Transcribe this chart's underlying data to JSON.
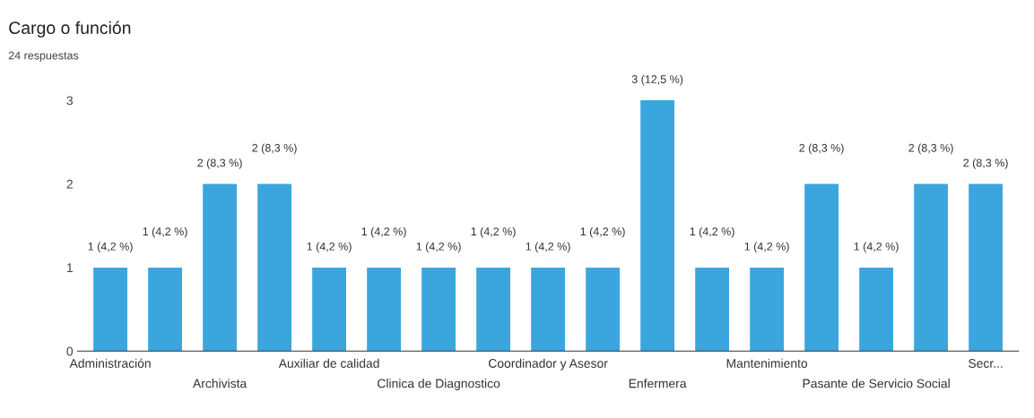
{
  "chart_data": {
    "type": "bar",
    "title": "Cargo o función",
    "subtitle": "24 respuestas",
    "categories": [
      "Administración",
      null,
      "Archivista",
      null,
      "Auxiliar de calidad",
      null,
      "Clinica de Diagnostico",
      null,
      "Coordinador y Asesor",
      null,
      "Enfermera",
      null,
      "Mantenimiento",
      null,
      "Pasante de Servicio Social",
      null,
      "Secr..."
    ],
    "values": [
      1,
      1,
      2,
      2,
      1,
      1,
      1,
      1,
      1,
      1,
      3,
      1,
      1,
      2,
      1,
      2,
      2
    ],
    "value_labels": [
      "1 (4,2 %)",
      "1 (4,2 %)",
      "2 (8,3 %)",
      "2 (8,3 %)",
      "1 (4,2 %)",
      "1 (4,2 %)",
      "1 (4,2 %)",
      "1 (4,2 %)",
      "1 (4,2 %)",
      "1 (4,2 %)",
      "3 (12,5 %)",
      "1 (4,2 %)",
      "1 (4,2 %)",
      "2 (8,3 %)",
      "1 (4,2 %)",
      "2 (8,3 %)",
      "2 (8,3 %)"
    ],
    "color": "#3aa6dd",
    "ylim": [
      0,
      3
    ],
    "yticks": [
      0,
      1,
      2,
      3
    ],
    "grid": false
  }
}
